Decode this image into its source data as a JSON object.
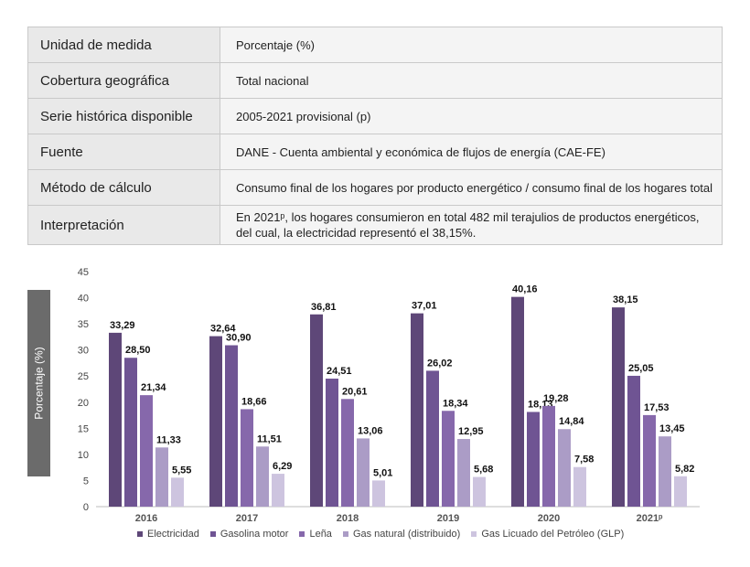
{
  "meta": {
    "rows": [
      {
        "key": "Unidad de medida",
        "value": "Porcentaje (%)"
      },
      {
        "key": "Cobertura geográfica",
        "value": "Total nacional"
      },
      {
        "key": "Serie histórica disponible",
        "value": "2005-2021 provisional (p)"
      },
      {
        "key": "Fuente",
        "value": "DANE - Cuenta ambiental y económica de flujos de energía (CAE-FE)"
      },
      {
        "key": "Método de cálculo",
        "value": "Consumo final de los hogares por producto energético / consumo final de los hogares total"
      },
      {
        "key": "Interpretación",
        "value_line1": "En 2021ᵖ, los hogares consumieron en total 482 mil terajulios de productos energéticos,",
        "value_line2": "del cual, la electricidad representó el 38,15%."
      }
    ]
  },
  "chart_data": {
    "type": "bar",
    "ylabel": "Porcentaje (%)",
    "xlabel": "",
    "ylim": [
      0,
      45
    ],
    "yticks": [
      "0",
      "5",
      "10",
      "15",
      "20",
      "25",
      "30",
      "35",
      "40",
      "45"
    ],
    "categories": [
      "2016",
      "2017",
      "2018",
      "2019",
      "2020",
      "2021ᵖ"
    ],
    "grid": false,
    "legend_position": "bottom",
    "series": [
      {
        "name": "Electricidad",
        "color": "#5e4778",
        "values": [
          33.29,
          32.64,
          36.81,
          37.01,
          40.16,
          38.15
        ],
        "labels": [
          "33,29",
          "32,64",
          "36,81",
          "37,01",
          "40,16",
          "38,15"
        ]
      },
      {
        "name": "Gasolina motor",
        "color": "#6f5493",
        "values": [
          28.5,
          30.9,
          24.51,
          26.02,
          18.13,
          25.05
        ],
        "labels": [
          "28,50",
          "30,90",
          "24,51",
          "26,02",
          "18,13",
          "25,05"
        ]
      },
      {
        "name": "Leña",
        "color": "#8668ab",
        "values": [
          21.34,
          18.66,
          20.61,
          18.34,
          19.28,
          17.53
        ],
        "labels": [
          "21,34",
          "18,66",
          "20,61",
          "18,34",
          "19,28",
          "17,53"
        ]
      },
      {
        "name": "Gas natural (distribuido)",
        "color": "#ab9cc6",
        "values": [
          11.33,
          11.51,
          13.06,
          12.95,
          14.84,
          13.45
        ],
        "labels": [
          "11,33",
          "11,51",
          "13,06",
          "12,95",
          "14,84",
          "13,45"
        ]
      },
      {
        "name": "Gas Licuado del Petróleo (GLP)",
        "color": "#cdc4df",
        "values": [
          5.55,
          6.29,
          5.01,
          5.68,
          7.58,
          5.82
        ],
        "labels": [
          "5,55",
          "6,29",
          "5,01",
          "5,68",
          "7,58",
          "5,82"
        ]
      }
    ]
  }
}
